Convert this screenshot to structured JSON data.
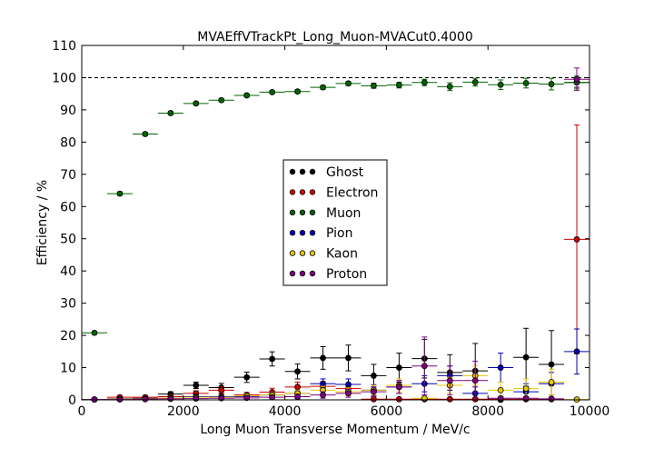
{
  "chart_data": {
    "type": "scatter",
    "title": "MVAEffVTrackPt_Long_Muon-MVACut0.4000",
    "xlabel": "Long Muon Transverse Momentum / MeV/c",
    "ylabel": "Efficiency / %",
    "xlim": [
      0,
      10000
    ],
    "ylim": [
      0,
      110
    ],
    "xticks": [
      "0",
      "2000",
      "4000",
      "6000",
      "8000",
      "10000"
    ],
    "yticks": [
      "0",
      "10",
      "20",
      "30",
      "40",
      "50",
      "60",
      "70",
      "80",
      "90",
      "100",
      "110"
    ],
    "reference_line": 100,
    "legend_position": "center",
    "bins": [
      250,
      750,
      1250,
      1750,
      2250,
      2750,
      3250,
      3750,
      4250,
      4750,
      5250,
      5750,
      6250,
      6750,
      7250,
      7750,
      8250,
      8750,
      9250,
      9750
    ],
    "bin_half_width": 250,
    "series": [
      {
        "name": "Ghost",
        "color": "#000000",
        "values": [
          0.1,
          0.3,
          0.5,
          1.8,
          4.5,
          3.8,
          7.0,
          12.7,
          8.8,
          13.0,
          13.0,
          7.5,
          10.0,
          12.8,
          8.5,
          9.0,
          0.0,
          13.2,
          11.0,
          98.5
        ],
        "errors": [
          0.1,
          0.3,
          0.4,
          0.7,
          1.0,
          1.3,
          1.6,
          2.2,
          2.3,
          3.5,
          4.0,
          3.5,
          4.5,
          6.0,
          5.5,
          8.5,
          0.5,
          9.0,
          10.5,
          1.5
        ]
      },
      {
        "name": "Electron",
        "color": "#d00000",
        "values": [
          0.1,
          0.8,
          0.8,
          1.0,
          2.0,
          3.0,
          1.5,
          2.4,
          4.0,
          4.2,
          3.5,
          0.2,
          0.2,
          0.2,
          0.2,
          0.2,
          0.2,
          0.2,
          0.2,
          49.8
        ],
        "errors": [
          0.1,
          0.4,
          0.4,
          0.6,
          0.8,
          1.0,
          0.8,
          1.2,
          1.5,
          1.5,
          1.5,
          0.3,
          0.3,
          0.3,
          0.3,
          0.3,
          0.3,
          0.3,
          0.3,
          35.5
        ]
      },
      {
        "name": "Muon",
        "color": "#006400",
        "values": [
          20.8,
          64.0,
          82.5,
          89.0,
          92.0,
          93.0,
          94.5,
          95.5,
          95.7,
          97.0,
          98.2,
          97.5,
          97.7,
          98.5,
          97.2,
          98.6,
          97.8,
          98.3,
          98.0,
          98.5
        ],
        "errors": [
          0.5,
          0.5,
          0.5,
          0.5,
          0.5,
          0.5,
          0.5,
          0.5,
          0.5,
          0.6,
          0.6,
          0.8,
          0.9,
          1.0,
          1.2,
          1.2,
          1.5,
          1.5,
          1.8,
          2.0
        ]
      },
      {
        "name": "Pion",
        "color": "#0000b4",
        "values": [
          0.1,
          0.2,
          0.3,
          0.5,
          1.0,
          1.0,
          1.0,
          1.5,
          2.0,
          5.0,
          4.8,
          3.0,
          4.0,
          5.0,
          7.5,
          2.0,
          10.0,
          2.5,
          5.0,
          15.0
        ],
        "errors": [
          0.1,
          0.2,
          0.3,
          0.4,
          0.5,
          0.7,
          0.7,
          0.9,
          1.0,
          1.5,
          1.7,
          1.7,
          2.0,
          2.5,
          3.0,
          2.0,
          4.5,
          2.5,
          3.5,
          7.0
        ]
      },
      {
        "name": "Kaon",
        "color": "#e6c800",
        "values": [
          0.1,
          0.2,
          0.3,
          0.5,
          0.8,
          0.8,
          1.2,
          1.5,
          2.0,
          3.0,
          2.5,
          3.0,
          4.5,
          0.5,
          4.5,
          7.5,
          3.0,
          3.5,
          5.5,
          0.1
        ],
        "errors": [
          0.1,
          0.2,
          0.3,
          0.4,
          0.5,
          0.6,
          0.7,
          0.8,
          1.0,
          1.2,
          1.2,
          1.5,
          2.0,
          1.0,
          2.5,
          3.0,
          2.5,
          3.0,
          4.0,
          0.3
        ]
      },
      {
        "name": "Proton",
        "color": "#800080",
        "values": [
          0.1,
          0.1,
          0.2,
          0.3,
          0.4,
          0.5,
          0.6,
          0.8,
          1.0,
          1.5,
          2.0,
          2.5,
          4.0,
          10.5,
          6.0,
          6.0,
          0.5,
          0.5,
          0.3,
          99.5
        ],
        "errors": [
          0.1,
          0.1,
          0.2,
          0.3,
          0.3,
          0.4,
          0.5,
          0.6,
          0.7,
          1.0,
          1.2,
          1.5,
          2.0,
          9.0,
          4.5,
          6.0,
          0.5,
          0.5,
          0.5,
          3.5
        ]
      }
    ]
  }
}
